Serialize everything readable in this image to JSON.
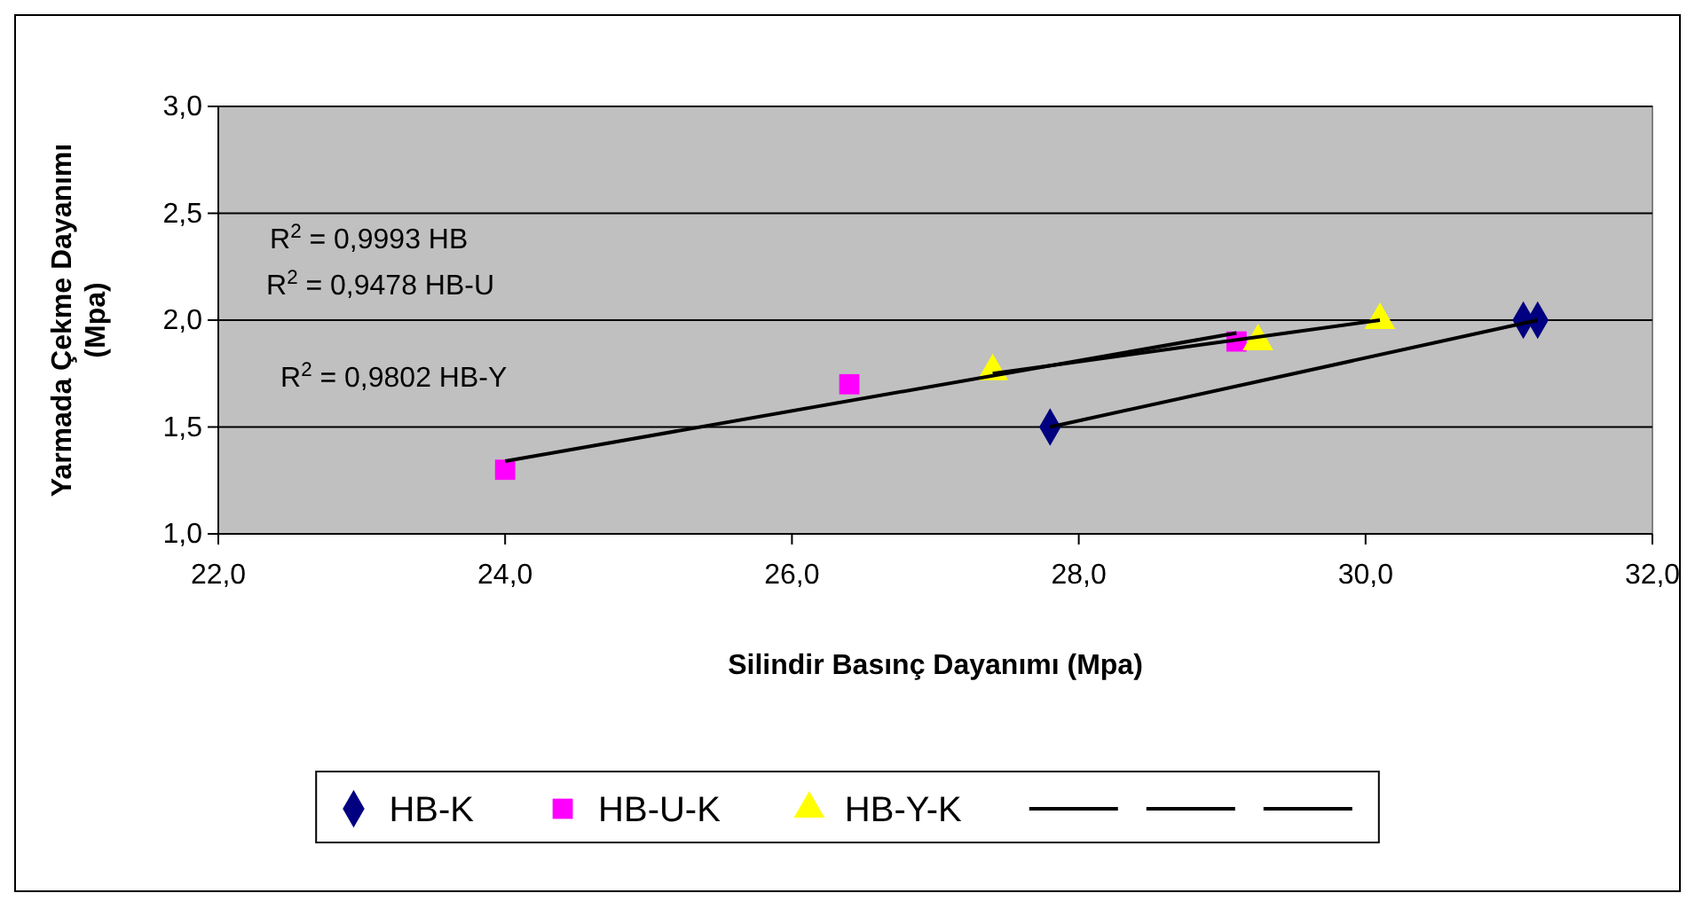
{
  "chart_data": {
    "type": "scatter",
    "xlabel": "Silindir Basınç Dayanımı (Mpa)",
    "ylabel": "Yarmada Çekme Dayanımı\n(Mpa)",
    "xlim": [
      22,
      32
    ],
    "xticks": [
      {
        "value": 22,
        "label": "22,0"
      },
      {
        "value": 24,
        "label": "24,0"
      },
      {
        "value": 26,
        "label": "26,0"
      },
      {
        "value": 28,
        "label": "28,0"
      },
      {
        "value": 30,
        "label": "30,0"
      },
      {
        "value": 32,
        "label": "32,0"
      }
    ],
    "ylim": [
      1,
      3
    ],
    "yticks": [
      {
        "value": 1,
        "label": "1,0"
      },
      {
        "value": 1.5,
        "label": "1,5"
      },
      {
        "value": 2,
        "label": "2,0"
      },
      {
        "value": 2.5,
        "label": "2,5"
      },
      {
        "value": 3,
        "label": "3,0"
      }
    ],
    "grid": "y",
    "legend": "bottom",
    "series": [
      {
        "name": "HB-K",
        "color": "#000080",
        "marker": "diamond",
        "x": [
          27.8,
          31.1,
          31.2
        ],
        "values": [
          1.5,
          2.0,
          2.0
        ]
      },
      {
        "name": "HB-U-K",
        "color": "#ff00ff",
        "marker": "square",
        "x": [
          24.0,
          26.4,
          29.1
        ],
        "values": [
          1.3,
          1.7,
          1.9
        ]
      },
      {
        "name": "HB-Y-K",
        "color": "#ffff00",
        "marker": "triangle",
        "x": [
          27.4,
          29.25,
          30.1
        ],
        "values": [
          1.76,
          1.9,
          2.0
        ]
      },
      {
        "type": "line",
        "color": "#000000",
        "x": [
          27.8,
          31.2
        ],
        "values": [
          1.5,
          2.0
        ]
      },
      {
        "type": "line",
        "color": "#000000",
        "x": [
          24.0,
          29.1
        ],
        "values": [
          1.34,
          1.94
        ]
      },
      {
        "type": "line",
        "color": "#000000",
        "x": [
          27.4,
          30.1
        ],
        "values": [
          1.75,
          2.0
        ]
      }
    ],
    "annotations": [
      "R$^{2}$ = 0,9993 HB",
      "R$^{2}$ = 0,9478 HB-U",
      "R$^{2}$ = 0,9802 HB-Y"
    ]
  }
}
